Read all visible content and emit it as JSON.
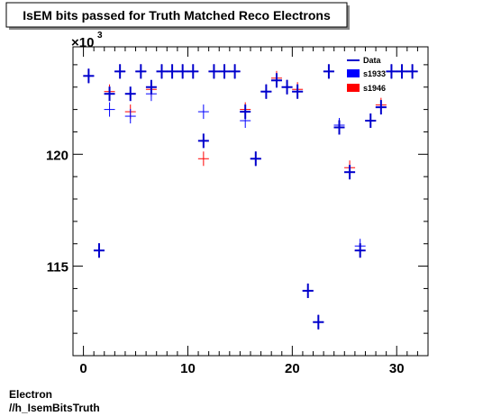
{
  "chart_data": {
    "type": "scatter",
    "title": "IsEM bits passed for Truth Matched Reco Electrons",
    "y_exponent_label": "×10",
    "y_exponent_power": "3",
    "xlim": [
      -1,
      33
    ],
    "ylim": [
      111000,
      124800
    ],
    "x_ticks": [
      0,
      10,
      20,
      30
    ],
    "y_ticks": [
      115000,
      120000
    ],
    "x_tick_labels": [
      "0",
      "10",
      "20",
      "30"
    ],
    "y_tick_labels": [
      "115",
      "120"
    ],
    "grid": false,
    "legend_position": "top-right",
    "bottom_labels": [
      "Electron",
      "//h_IsemBitsTruth"
    ],
    "series": [
      {
        "name": "Data",
        "color": "#0000cc",
        "points": [
          [
            0.5,
            123500
          ],
          [
            1.5,
            115700
          ],
          [
            2.5,
            122700
          ],
          [
            3.5,
            123700
          ],
          [
            4.5,
            122700
          ],
          [
            5.5,
            123700
          ],
          [
            6.5,
            123000
          ],
          [
            7.5,
            123700
          ],
          [
            8.5,
            123700
          ],
          [
            9.5,
            123700
          ],
          [
            10.5,
            123700
          ],
          [
            11.5,
            120600
          ],
          [
            12.5,
            123700
          ],
          [
            13.5,
            123700
          ],
          [
            14.5,
            123700
          ],
          [
            15.5,
            121900
          ],
          [
            16.5,
            119800
          ],
          [
            17.5,
            122800
          ],
          [
            18.5,
            123300
          ],
          [
            19.5,
            123000
          ],
          [
            20.5,
            122800
          ],
          [
            21.5,
            113900
          ],
          [
            22.5,
            112500
          ],
          [
            23.5,
            123700
          ],
          [
            24.5,
            121200
          ],
          [
            25.5,
            119200
          ],
          [
            26.5,
            115700
          ],
          [
            27.5,
            121500
          ],
          [
            28.5,
            122100
          ],
          [
            29.5,
            123700
          ],
          [
            30.5,
            123700
          ],
          [
            31.5,
            123700
          ]
        ]
      },
      {
        "name": "s1933",
        "color": "#0000ff",
        "points": [
          [
            0.5,
            123500
          ],
          [
            1.5,
            115700
          ],
          [
            2.5,
            122000
          ],
          [
            3.5,
            123700
          ],
          [
            4.5,
            121700
          ],
          [
            5.5,
            123700
          ],
          [
            6.5,
            122700
          ],
          [
            7.5,
            123700
          ],
          [
            8.5,
            123700
          ],
          [
            9.5,
            123700
          ],
          [
            10.5,
            123700
          ],
          [
            11.5,
            121900
          ],
          [
            12.5,
            123700
          ],
          [
            13.5,
            123700
          ],
          [
            14.5,
            123700
          ],
          [
            15.5,
            121500
          ],
          [
            16.5,
            119800
          ],
          [
            17.5,
            122800
          ],
          [
            18.5,
            123300
          ],
          [
            19.5,
            123000
          ],
          [
            20.5,
            122800
          ],
          [
            21.5,
            113900
          ],
          [
            22.5,
            112500
          ],
          [
            23.5,
            123700
          ],
          [
            24.5,
            121300
          ],
          [
            25.5,
            119200
          ],
          [
            26.5,
            115900
          ],
          [
            27.5,
            121500
          ],
          [
            28.5,
            122100
          ],
          [
            29.5,
            123700
          ],
          [
            30.5,
            123700
          ],
          [
            31.5,
            123700
          ]
        ]
      },
      {
        "name": "s1946",
        "color": "#ff0000",
        "points": [
          [
            0.5,
            123500
          ],
          [
            1.5,
            115700
          ],
          [
            2.5,
            122800
          ],
          [
            3.5,
            123700
          ],
          [
            4.5,
            121900
          ],
          [
            5.5,
            123700
          ],
          [
            6.5,
            122900
          ],
          [
            7.5,
            123700
          ],
          [
            8.5,
            123700
          ],
          [
            9.5,
            123700
          ],
          [
            10.5,
            123700
          ],
          [
            11.5,
            119800
          ],
          [
            12.5,
            123700
          ],
          [
            13.5,
            123700
          ],
          [
            14.5,
            123700
          ],
          [
            15.5,
            122000
          ],
          [
            16.5,
            119800
          ],
          [
            17.5,
            122800
          ],
          [
            18.5,
            123400
          ],
          [
            19.5,
            123000
          ],
          [
            20.5,
            122900
          ],
          [
            21.5,
            113900
          ],
          [
            22.5,
            112500
          ],
          [
            23.5,
            123700
          ],
          [
            24.5,
            121300
          ],
          [
            25.5,
            119400
          ],
          [
            26.5,
            115700
          ],
          [
            27.5,
            121500
          ],
          [
            28.5,
            122200
          ],
          [
            29.5,
            123700
          ],
          [
            30.5,
            123700
          ],
          [
            31.5,
            123700
          ]
        ]
      }
    ]
  }
}
